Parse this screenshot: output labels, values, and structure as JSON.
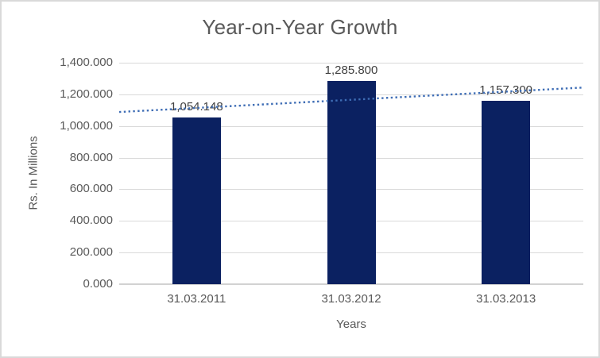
{
  "chart_data": {
    "type": "bar",
    "title": "Year-on-Year Growth",
    "categories": [
      "31.03.2011",
      "31.03.2012",
      "31.03.2013"
    ],
    "values": [
      1054.148,
      1285.8,
      1157.3
    ],
    "value_labels": [
      "1,054.148",
      "1,285.800",
      "1,157.300"
    ],
    "xlabel": "Years",
    "ylabel": "Rs. In Millions",
    "ylim": [
      0,
      1400
    ],
    "ytick_interval": 200,
    "ytick_labels": [
      "0.000",
      "200.000",
      "400.000",
      "600.000",
      "800.000",
      "1,000.000",
      "1,200.000",
      "1,400.000"
    ],
    "grid": true,
    "legend": "none",
    "bar_color": "#0B2161",
    "trendline": {
      "type": "linear",
      "style": "dotted",
      "color": "#3E6DB5",
      "value_at_plot_left": 1088.4,
      "value_at_plot_right": 1243.1
    },
    "colors": {
      "title_text": "#595959",
      "axis_text": "#595959",
      "data_label_text": "#404040",
      "gridline": "#D9D9D9",
      "axis_line": "#D2D2D2",
      "chart_border": "#D9D9D9",
      "background": "#FFFFFF"
    }
  }
}
